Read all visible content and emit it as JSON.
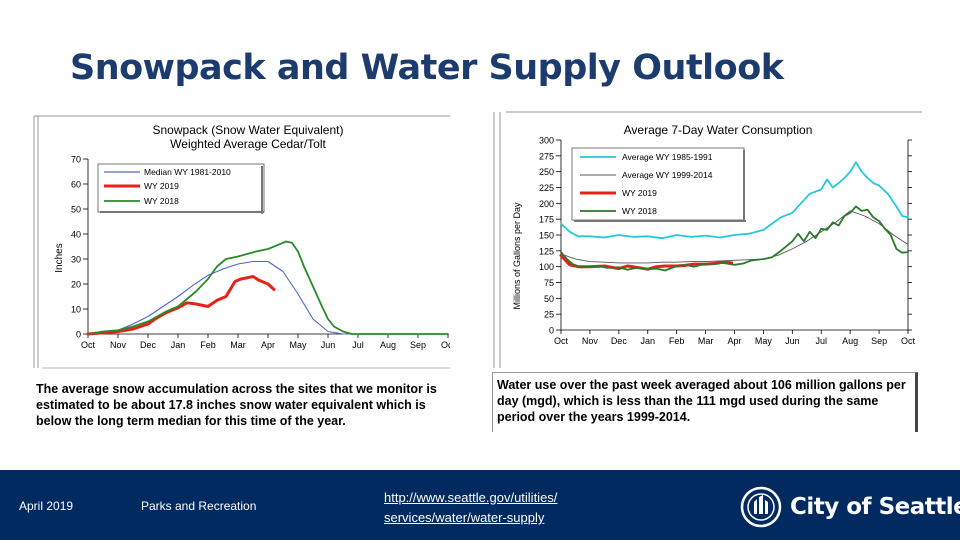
{
  "slide": {
    "title": "Snowpack and Water Supply Outlook",
    "accent_color": "#1c3c6e",
    "footer_color": "#002a60"
  },
  "footer": {
    "date": "April 2019",
    "department": "Parks and Recreation",
    "link_line1": "http://www.seattle.gov/utilities/",
    "link_line2": "services/water/water-supply",
    "logo_text": "City of Seattle"
  },
  "captions": {
    "snowpack": "The average snow accumulation across the sites that we monitor is estimated to be about 17.8 inches snow water equivalent which is below the long term median for this time of the year.",
    "consumption": "Water use over the past week averaged about 106 million gallons per day (mgd), which is less than the 111 mgd used during the same period over the years 1999-2014."
  },
  "chart_data": [
    {
      "type": "line",
      "title": "Snowpack (Snow Water Equivalent)",
      "subtitle": "Weighted Average Cedar/Tolt",
      "xlabel": "",
      "ylabel": "Inches",
      "categories": [
        "Oct",
        "Nov",
        "Dec",
        "Jan",
        "Feb",
        "Mar",
        "Apr",
        "May",
        "Jun",
        "Jul",
        "Aug",
        "Sep",
        "Oct"
      ],
      "ylim": [
        0,
        70
      ],
      "yticks": [
        0,
        10,
        20,
        30,
        40,
        50,
        60,
        70
      ],
      "legend_position": "top-left",
      "series": [
        {
          "name": "Median WY 1981-2010",
          "color": "#4a68c8",
          "x": [
            0,
            0.5,
            1,
            1.5,
            2,
            2.5,
            3,
            3.5,
            4,
            4.5,
            5,
            5.5,
            6,
            6.5,
            7,
            7.5,
            8,
            8.5,
            9,
            9.5,
            10,
            11,
            12
          ],
          "values": [
            0,
            0.5,
            1.5,
            4,
            7,
            11,
            15,
            19.5,
            23.5,
            26,
            28,
            29,
            29,
            25,
            16,
            6,
            1,
            0,
            0,
            0,
            0,
            0,
            0
          ]
        },
        {
          "name": "WY 2019",
          "color": "#e8201a",
          "x": [
            0,
            0.5,
            1,
            1.5,
            2,
            2.3,
            2.6,
            3,
            3.3,
            3.6,
            4,
            4.3,
            4.6,
            4.9,
            5.1,
            5.3,
            5.5,
            5.7,
            6,
            6.2
          ],
          "values": [
            0,
            0.5,
            1,
            2,
            4,
            6.5,
            8.5,
            10.5,
            12.5,
            12,
            11,
            13.5,
            15,
            21,
            22,
            22.5,
            23,
            21.5,
            20,
            17.8
          ]
        },
        {
          "name": "WY 2018",
          "color": "#2a8a2a",
          "x": [
            0,
            0.5,
            1,
            1.5,
            2,
            2.3,
            2.6,
            3,
            3.3,
            3.6,
            4,
            4.3,
            4.6,
            5,
            5.3,
            5.6,
            6,
            6.3,
            6.6,
            6.8,
            7,
            7.2,
            7.5,
            7.8,
            8,
            8.2,
            8.5,
            8.8,
            9,
            9.5,
            10,
            11,
            12
          ],
          "values": [
            0,
            1,
            1.5,
            3,
            5,
            7,
            9,
            11,
            14,
            17,
            22,
            27,
            30,
            31,
            32,
            33,
            34,
            35.5,
            37,
            36.5,
            33,
            27,
            19,
            11,
            6,
            3,
            1,
            0,
            0,
            0,
            0,
            0,
            0
          ]
        }
      ]
    },
    {
      "type": "line",
      "title": "Average 7-Day Water Consumption",
      "xlabel": "",
      "ylabel": "Millions of Gallons per Day",
      "categories": [
        "Oct",
        "Nov",
        "Dec",
        "Jan",
        "Feb",
        "Mar",
        "Apr",
        "May",
        "Jun",
        "Jul",
        "Aug",
        "Sep",
        "Oct"
      ],
      "ylim": [
        0,
        300
      ],
      "yticks": [
        0,
        25,
        50,
        75,
        100,
        125,
        150,
        175,
        200,
        225,
        250,
        275,
        300
      ],
      "legend_position": "top-left",
      "series": [
        {
          "name": "Average WY 1985-1991",
          "color": "#22c8dc",
          "x": [
            0,
            0.3,
            0.6,
            1,
            1.5,
            2,
            2.5,
            3,
            3.5,
            4,
            4.5,
            5,
            5.5,
            6,
            6.5,
            7,
            7.3,
            7.6,
            8,
            8.3,
            8.6,
            9,
            9.2,
            9.4,
            9.6,
            9.8,
            10,
            10.2,
            10.4,
            10.6,
            10.8,
            11,
            11.3,
            11.6,
            11.8,
            12
          ],
          "values": [
            168,
            155,
            148,
            148,
            146,
            150,
            147,
            148,
            145,
            150,
            147,
            149,
            146,
            150,
            152,
            158,
            168,
            178,
            185,
            200,
            215,
            222,
            238,
            225,
            232,
            240,
            250,
            265,
            250,
            240,
            232,
            228,
            215,
            195,
            180,
            178
          ]
        },
        {
          "name": "Average WY 1999-2014",
          "color": "#555555",
          "x": [
            0,
            0.5,
            1,
            1.5,
            2,
            2.5,
            3,
            3.5,
            4,
            4.5,
            5,
            5.5,
            6,
            6.5,
            7,
            7.5,
            8,
            8.5,
            9,
            9.5,
            10,
            10.5,
            11,
            11.5,
            12
          ],
          "values": [
            120,
            112,
            108,
            107,
            106,
            106,
            106,
            107,
            107,
            108,
            108,
            109,
            110,
            111,
            112,
            118,
            128,
            140,
            155,
            170,
            188,
            180,
            168,
            150,
            135
          ]
        },
        {
          "name": "WY 2019",
          "color": "#e8201a",
          "x": [
            0,
            0.3,
            0.6,
            1,
            1.5,
            2,
            2.3,
            2.6,
            3,
            3.3,
            3.6,
            4,
            4.3,
            4.6,
            5,
            5.3,
            5.6,
            5.9
          ],
          "values": [
            118,
            103,
            100,
            100,
            101,
            97,
            101,
            99,
            96,
            100,
            101,
            101,
            102,
            104,
            104,
            105,
            107,
            106
          ]
        },
        {
          "name": "WY 2018",
          "color": "#2a7a2a",
          "x": [
            0,
            0.2,
            0.4,
            0.7,
            1,
            1.3,
            1.6,
            2,
            2.3,
            2.6,
            3,
            3.3,
            3.6,
            4,
            4.3,
            4.6,
            5,
            5.3,
            5.6,
            6,
            6.3,
            6.6,
            7,
            7.3,
            7.6,
            8,
            8.2,
            8.4,
            8.6,
            8.8,
            9,
            9.2,
            9.4,
            9.6,
            9.8,
            10,
            10.2,
            10.4,
            10.6,
            10.8,
            11,
            11.2,
            11.4,
            11.6,
            11.8,
            12
          ],
          "values": [
            123,
            112,
            104,
            99,
            100,
            101,
            98,
            99,
            95,
            98,
            96,
            97,
            94,
            101,
            103,
            100,
            105,
            104,
            106,
            103,
            105,
            110,
            112,
            115,
            125,
            140,
            152,
            140,
            155,
            145,
            160,
            158,
            170,
            165,
            180,
            185,
            195,
            188,
            190,
            178,
            172,
            160,
            150,
            128,
            122,
            123
          ]
        }
      ]
    }
  ]
}
